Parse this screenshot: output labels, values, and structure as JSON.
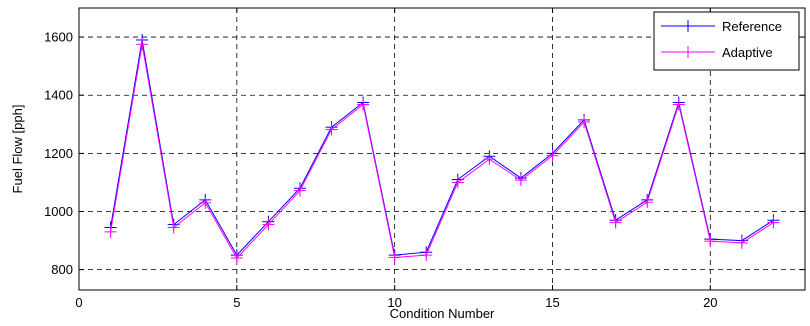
{
  "chart_data": {
    "type": "line",
    "xlabel": "Condition Number",
    "ylabel": "Fuel Flow [pph]",
    "xlim": [
      0,
      23
    ],
    "ylim": [
      730,
      1700
    ],
    "xticks": [
      0,
      5,
      10,
      15,
      20
    ],
    "yticks": [
      800,
      1000,
      1200,
      1400,
      1600
    ],
    "grid": true,
    "legend_position": "top-right",
    "x": [
      1,
      2,
      3,
      4,
      5,
      6,
      7,
      8,
      9,
      10,
      11,
      12,
      13,
      14,
      15,
      16,
      17,
      18,
      19,
      20,
      21,
      22
    ],
    "series": [
      {
        "name": "Reference",
        "color": "#0000ff",
        "marker": "plus",
        "values": [
          945,
          1590,
          955,
          1040,
          850,
          965,
          1080,
          1290,
          1375,
          850,
          860,
          1110,
          1190,
          1115,
          1200,
          1315,
          970,
          1040,
          1375,
          905,
          900,
          970
        ]
      },
      {
        "name": "Adaptive",
        "color": "#ff00ff",
        "marker": "plus",
        "values": [
          930,
          1575,
          945,
          1030,
          840,
          955,
          1072,
          1282,
          1368,
          842,
          850,
          1100,
          1180,
          1108,
          1192,
          1308,
          962,
          1032,
          1368,
          898,
          892,
          962
        ]
      }
    ]
  }
}
